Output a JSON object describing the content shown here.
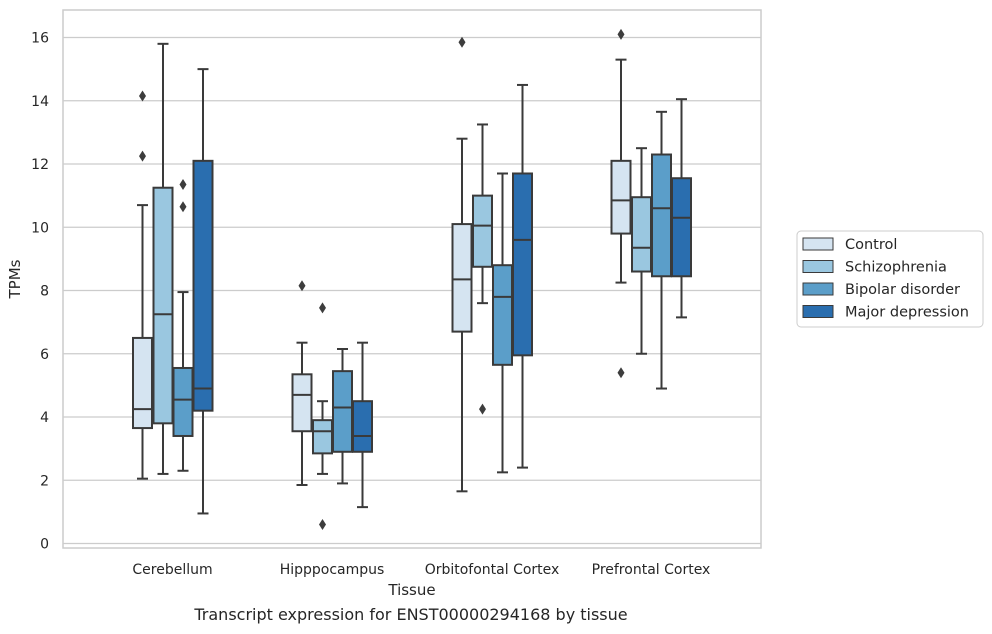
{
  "caption": "Transcript expression for ENST00000294168 by tissue",
  "colors": {
    "series": [
      "#d5e4f1",
      "#9ac7e0",
      "#5b9ec9",
      "#2a6eaf"
    ],
    "grid": "#cccccc",
    "frame": "#cccccc",
    "box_line": "#3a3a3a",
    "background": "#ffffff"
  },
  "chart_data": {
    "type": "box",
    "title": "",
    "xlabel": "Tissue",
    "ylabel": "TPMs",
    "ylim": [
      -0.2,
      16.8
    ],
    "yticks": [
      0,
      2,
      4,
      6,
      8,
      10,
      12,
      14,
      16
    ],
    "grid": true,
    "legend": {
      "placement": "right",
      "entries": [
        "Control",
        "Schizophrenia",
        "Bipolar disorder",
        "Major depression"
      ]
    },
    "categories": [
      "Cerebellum",
      "Hipppocampus",
      "Orbitofontal Cortex",
      "Prefrontal Cortex"
    ],
    "series": [
      {
        "name": "Control",
        "boxes": [
          {
            "whislo": 2.05,
            "q1": 3.65,
            "med": 4.25,
            "q3": 6.5,
            "whishi": 10.7,
            "fliers": [
              12.25,
              14.15
            ]
          },
          {
            "whislo": 1.85,
            "q1": 3.55,
            "med": 4.7,
            "q3": 5.35,
            "whishi": 6.35,
            "fliers": [
              8.15
            ]
          },
          {
            "whislo": 1.65,
            "q1": 6.7,
            "med": 8.35,
            "q3": 10.1,
            "whishi": 12.8,
            "fliers": [
              15.85
            ]
          },
          {
            "whislo": 8.25,
            "q1": 9.8,
            "med": 10.85,
            "q3": 12.1,
            "whishi": 15.3,
            "fliers": [
              16.1,
              5.4
            ]
          }
        ]
      },
      {
        "name": "Schizophrenia",
        "boxes": [
          {
            "whislo": 2.2,
            "q1": 3.8,
            "med": 7.25,
            "q3": 11.25,
            "whishi": 15.8,
            "fliers": []
          },
          {
            "whislo": 2.2,
            "q1": 2.85,
            "med": 3.55,
            "q3": 3.9,
            "whishi": 4.5,
            "fliers": [
              7.45,
              0.6
            ]
          },
          {
            "whislo": 7.6,
            "q1": 8.75,
            "med": 10.05,
            "q3": 11.0,
            "whishi": 13.25,
            "fliers": [
              4.25
            ]
          },
          {
            "whislo": 6.0,
            "q1": 8.6,
            "med": 9.35,
            "q3": 10.95,
            "whishi": 12.5,
            "fliers": []
          }
        ]
      },
      {
        "name": "Bipolar disorder",
        "boxes": [
          {
            "whislo": 2.3,
            "q1": 3.4,
            "med": 4.55,
            "q3": 5.55,
            "whishi": 7.95,
            "fliers": [
              10.65,
              11.35
            ]
          },
          {
            "whislo": 1.9,
            "q1": 2.9,
            "med": 4.3,
            "q3": 5.45,
            "whishi": 6.15,
            "fliers": []
          },
          {
            "whislo": 2.25,
            "q1": 5.65,
            "med": 7.8,
            "q3": 8.8,
            "whishi": 11.7,
            "fliers": []
          },
          {
            "whislo": 4.9,
            "q1": 8.45,
            "med": 10.6,
            "q3": 12.3,
            "whishi": 13.65,
            "fliers": []
          }
        ]
      },
      {
        "name": "Major depression",
        "boxes": [
          {
            "whislo": 0.95,
            "q1": 4.2,
            "med": 4.9,
            "q3": 12.1,
            "whishi": 15.0,
            "fliers": []
          },
          {
            "whislo": 1.15,
            "q1": 2.9,
            "med": 3.4,
            "q3": 4.5,
            "whishi": 6.35,
            "fliers": []
          },
          {
            "whislo": 2.4,
            "q1": 5.95,
            "med": 9.6,
            "q3": 11.7,
            "whishi": 14.5,
            "fliers": []
          },
          {
            "whislo": 7.15,
            "q1": 8.45,
            "med": 10.3,
            "q3": 11.55,
            "whishi": 14.05,
            "fliers": []
          }
        ]
      }
    ]
  }
}
